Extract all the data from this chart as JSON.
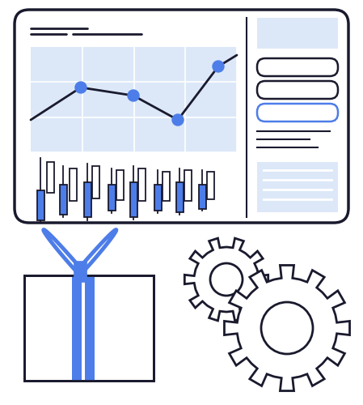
{
  "bg_color": "#ffffff",
  "blue_color": "#4d7de8",
  "light_blue": "#dce8f8",
  "outline_color": "#1a1a2e",
  "gear_color": "#1a1a2e"
}
